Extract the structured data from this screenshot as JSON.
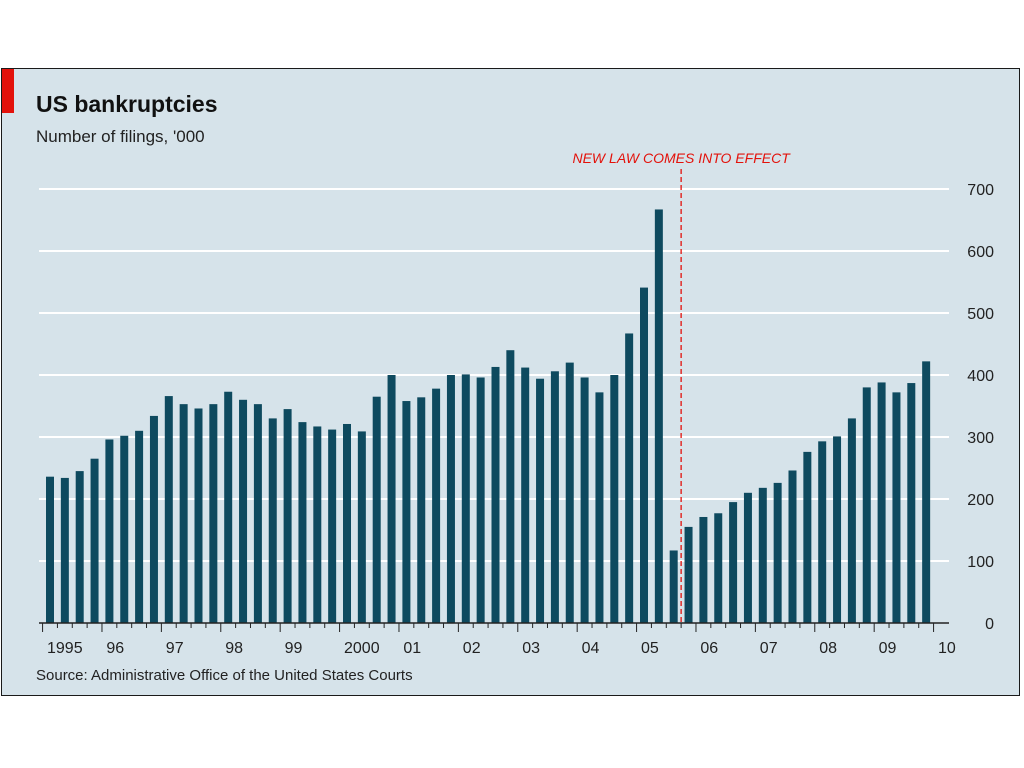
{
  "chart_data": {
    "type": "bar",
    "title": "US bankruptcies",
    "subtitle": "Number of filings, '000",
    "source": "Source: Administrative Office of the United States Courts",
    "annotation": "NEW LAW COMES INTO EFFECT",
    "annotation_after_index": 43,
    "ylim": [
      0,
      700
    ],
    "yticks": [
      0,
      100,
      200,
      300,
      400,
      500,
      600,
      700
    ],
    "ytick_labels": [
      "0",
      "100",
      "200",
      "300",
      "400",
      "500",
      "600",
      "700"
    ],
    "x_labels": [
      {
        "label": "1995",
        "index": 0
      },
      {
        "label": "96",
        "index": 4
      },
      {
        "label": "97",
        "index": 8
      },
      {
        "label": "98",
        "index": 12
      },
      {
        "label": "99",
        "index": 16
      },
      {
        "label": "2000",
        "index": 20
      },
      {
        "label": "01",
        "index": 24
      },
      {
        "label": "02",
        "index": 28
      },
      {
        "label": "03",
        "index": 32
      },
      {
        "label": "04",
        "index": 36
      },
      {
        "label": "05",
        "index": 40
      },
      {
        "label": "06",
        "index": 44
      },
      {
        "label": "07",
        "index": 48
      },
      {
        "label": "08",
        "index": 52
      },
      {
        "label": "09",
        "index": 56
      },
      {
        "label": "10",
        "index": 60
      }
    ],
    "values": [
      236,
      234,
      245,
      265,
      296,
      302,
      310,
      334,
      366,
      353,
      346,
      353,
      373,
      360,
      353,
      330,
      345,
      324,
      317,
      312,
      321,
      309,
      365,
      400,
      358,
      364,
      378,
      400,
      401,
      396,
      413,
      440,
      412,
      394,
      406,
      420,
      396,
      372,
      400,
      467,
      541,
      667,
      117,
      155,
      171,
      177,
      195,
      210,
      218,
      226,
      246,
      276,
      293,
      301,
      330,
      380,
      388,
      372,
      387,
      422
    ],
    "bar_color": "#0e4a5f",
    "grid_color": "#ffffff",
    "annotation_color": "#e3120b",
    "background": "#d6e3ea"
  }
}
